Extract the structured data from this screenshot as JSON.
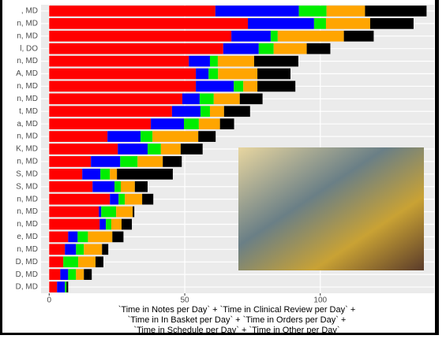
{
  "chart_data": {
    "type": "stacked-barh",
    "x_label": [
      "`Time in Notes per Day` + `Time in Clinical Review per Day` +",
      "`Time in In Basket per Day` + `Time in Orders per Day` +",
      "`Time in Schedule per Day` + `Time in Other per Day`"
    ],
    "categories": [
      ", MD",
      "n, MD",
      "n, MD",
      "l, DO",
      "n, MD",
      "A, MD",
      "n, MD",
      "n, MD",
      "t, MD",
      "a, MD",
      "n, MD",
      "K, MD",
      "n, MD",
      "S, MD",
      "S, MD",
      "n, MD",
      "n, MD",
      "n, MD",
      "e, MD",
      "n, MD",
      "D, MD",
      "D, MD",
      "D, MD"
    ],
    "series": [
      {
        "color": "#ff0000",
        "values": [
          61.3,
          73.3,
          67.2,
          64.2,
          51.5,
          54.1,
          54.1,
          49.1,
          45.3,
          37.5,
          21.5,
          25.3,
          15.4,
          12.2,
          16,
          22.4,
          18.3,
          18.6,
          7,
          5.8,
          5.2,
          4.1,
          2.9
        ]
      },
      {
        "color": "#0000ff",
        "values": [
          30.8,
          24.4,
          14.5,
          13.1,
          7.8,
          4.7,
          14,
          6.4,
          10.5,
          12.2,
          12.2,
          11,
          10.8,
          6.7,
          8.1,
          3.2,
          0.9,
          2.3,
          3.5,
          4.1,
          0,
          2.9,
          2.9
        ]
      },
      {
        "color": "#00ee00",
        "values": [
          10.2,
          4.4,
          2.6,
          5.5,
          2.9,
          3.5,
          3.5,
          5.2,
          3.5,
          5.5,
          4.4,
          4.9,
          6.4,
          3.5,
          2.3,
          2.3,
          5.5,
          2,
          3.8,
          2.9,
          5.5,
          2.9,
          0.6
        ]
      },
      {
        "color": "#ffa500",
        "values": [
          14.2,
          16.3,
          24.4,
          12.2,
          13.4,
          14.5,
          5.2,
          9.6,
          5.2,
          7.8,
          16.9,
          7.3,
          9.3,
          2.6,
          5.2,
          6.4,
          6.1,
          3.8,
          9,
          6.7,
          6.4,
          2.9,
          0
        ]
      },
      {
        "color": "#000000",
        "values": [
          22.7,
          16,
          11,
          8.7,
          16.3,
          12.2,
          14,
          8.4,
          9.6,
          5.2,
          6.4,
          8.1,
          7,
          20.6,
          4.7,
          4.1,
          0.6,
          3.8,
          4.1,
          2.3,
          2.9,
          2.9,
          0.6
        ]
      }
    ],
    "xlim": [
      -3,
      142
    ],
    "xticks": [
      0,
      50,
      100
    ],
    "grid": true
  }
}
